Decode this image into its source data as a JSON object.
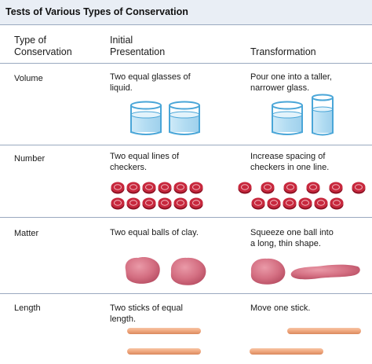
{
  "title": "Tests of Various Types of Conservation",
  "headers": {
    "type_line1": "Type of",
    "type_line2": "Conservation",
    "initial_line1": "Initial",
    "initial_line2": "Presentation",
    "transformation": "Transformation"
  },
  "rows": [
    {
      "label": "Volume",
      "initial_line1": "Two equal glasses of",
      "initial_line2": "liquid.",
      "transform_line1": "Pour one into a taller,",
      "transform_line2": "narrower glass."
    },
    {
      "label": "Number",
      "initial_line1": "Two equal lines of",
      "initial_line2": "checkers.",
      "transform_line1": "Increase spacing of",
      "transform_line2": "checkers in one line."
    },
    {
      "label": "Matter",
      "initial_line1": "Two equal balls of clay.",
      "transform_line1": "Squeeze one ball into",
      "transform_line2": "a long, thin shape."
    },
    {
      "label": "Length",
      "initial_line1": "Two sticks of equal",
      "initial_line2": "length.",
      "transform_line1": "Move one stick."
    }
  ],
  "colors": {
    "title_band": "#e9eef5",
    "rule": "#9aa9bf",
    "glass_outline": "#4aa6d8",
    "liquid": "#b9dff3",
    "checker": "#c7283d",
    "checker_dark": "#8d1224",
    "clay": "#d46f82",
    "stick": "#f0a77e"
  },
  "icons": [
    "glass-icon",
    "checker-icon",
    "clay-ball-icon",
    "stick-icon"
  ]
}
